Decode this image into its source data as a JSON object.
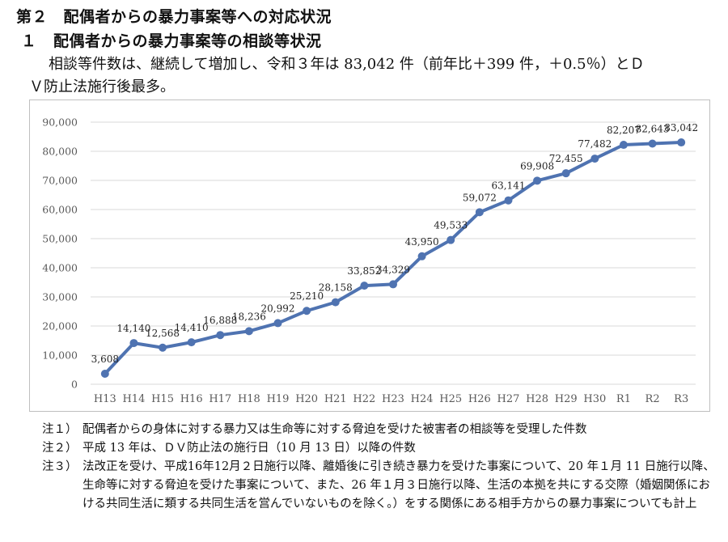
{
  "heading1": "第２　配偶者からの暴力事案等への対応状況",
  "heading2": {
    "number": "１",
    "text": "配偶者からの暴力事案等の相談等状況"
  },
  "lead": {
    "line1": "相談等件数は、継続して増加し、令和３年は 83,042 件（前年比＋399 件，＋0.5％）とＤ",
    "line2": "Ｖ防止法施行後最多。"
  },
  "chart_data": {
    "type": "line",
    "categories": [
      "H13",
      "H14",
      "H15",
      "H16",
      "H17",
      "H18",
      "H19",
      "H20",
      "H21",
      "H22",
      "H23",
      "H24",
      "H25",
      "H26",
      "H27",
      "H28",
      "H29",
      "H30",
      "R1",
      "R2",
      "R3"
    ],
    "values": [
      3608,
      14140,
      12568,
      14410,
      16888,
      18236,
      20992,
      25210,
      28158,
      33852,
      34329,
      43950,
      49533,
      59072,
      63141,
      69908,
      72455,
      77482,
      82207,
      82643,
      83042
    ],
    "data_labels": [
      "3,608",
      "14,140",
      "12,568",
      "14,410",
      "16,888",
      "18,236",
      "20,992",
      "25,210",
      "28,158",
      "33,852",
      "34,329",
      "43,950",
      "49,533",
      "59,072",
      "63,141",
      "69,908",
      "72,455",
      "77,482",
      "82,207",
      "82,643",
      "83,042"
    ],
    "yticks": [
      0,
      10000,
      20000,
      30000,
      40000,
      50000,
      60000,
      70000,
      80000,
      90000
    ],
    "ytick_labels": [
      "0",
      "10,000",
      "20,000",
      "30,000",
      "40,000",
      "50,000",
      "60,000",
      "70,000",
      "80,000",
      "90,000"
    ],
    "ylim": [
      0,
      90000
    ],
    "grid": true,
    "line_color": "#4f73b1",
    "grid_color": "#d9d9d9",
    "title": "",
    "xlabel": "",
    "ylabel": ""
  },
  "notes": [
    {
      "label": "注１）",
      "text": "配偶者からの身体に対する暴力又は生命等に対する脅迫を受けた被害者の相談等を受理した件数"
    },
    {
      "label": "注２）",
      "text": "平成 13 年は、ＤＶ防止法の施行日（10 月 13 日）以降の件数"
    },
    {
      "label": "注３）",
      "text": "法改正を受け、平成16年12月２日施行以降、離婚後に引き続き暴力を受けた事案について、20 年１月 11 日施行以降、生命等に対する脅迫を受けた事案について、また、26 年１月３日施行以降、生活の本拠を共にする交際（婚姻関係における共同生活に類する共同生活を営んでいないものを除く。）をする関係にある相手方からの暴力事案についても計上"
    }
  ]
}
